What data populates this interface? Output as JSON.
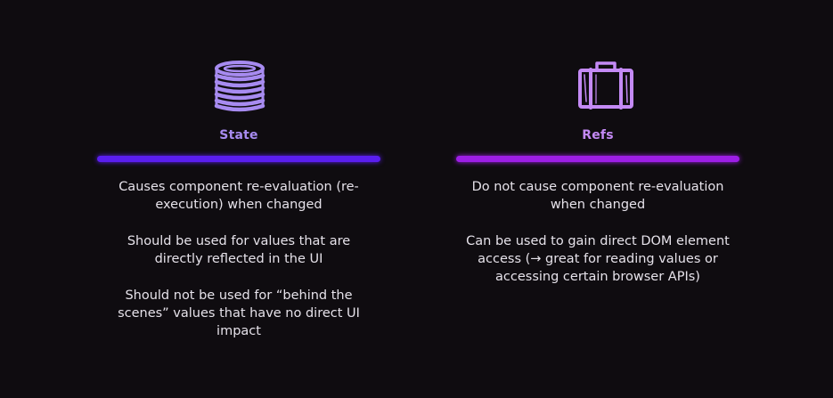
{
  "colors": {
    "background": "#0f0c10",
    "state_accent": "#a78bf0",
    "state_bar": "#5a1ef0",
    "refs_accent": "#c48af5",
    "refs_bar": "#9d1ee6",
    "text": "#e6e2ea"
  },
  "columns": [
    {
      "icon": "database-stack-icon",
      "heading": "State",
      "points": [
        "Causes component re-evaluation (re-execution) when changed",
        "Should be used for values that are directly reflected in the UI",
        "Should not be used for “behind the scenes” values that have no direct UI impact"
      ]
    },
    {
      "icon": "box-icon",
      "heading": "Refs",
      "points": [
        "Do not cause component re-evaluation when changed",
        "Can be used to gain direct DOM element access (→ great for reading values or accessing certain browser APIs)"
      ]
    }
  ]
}
